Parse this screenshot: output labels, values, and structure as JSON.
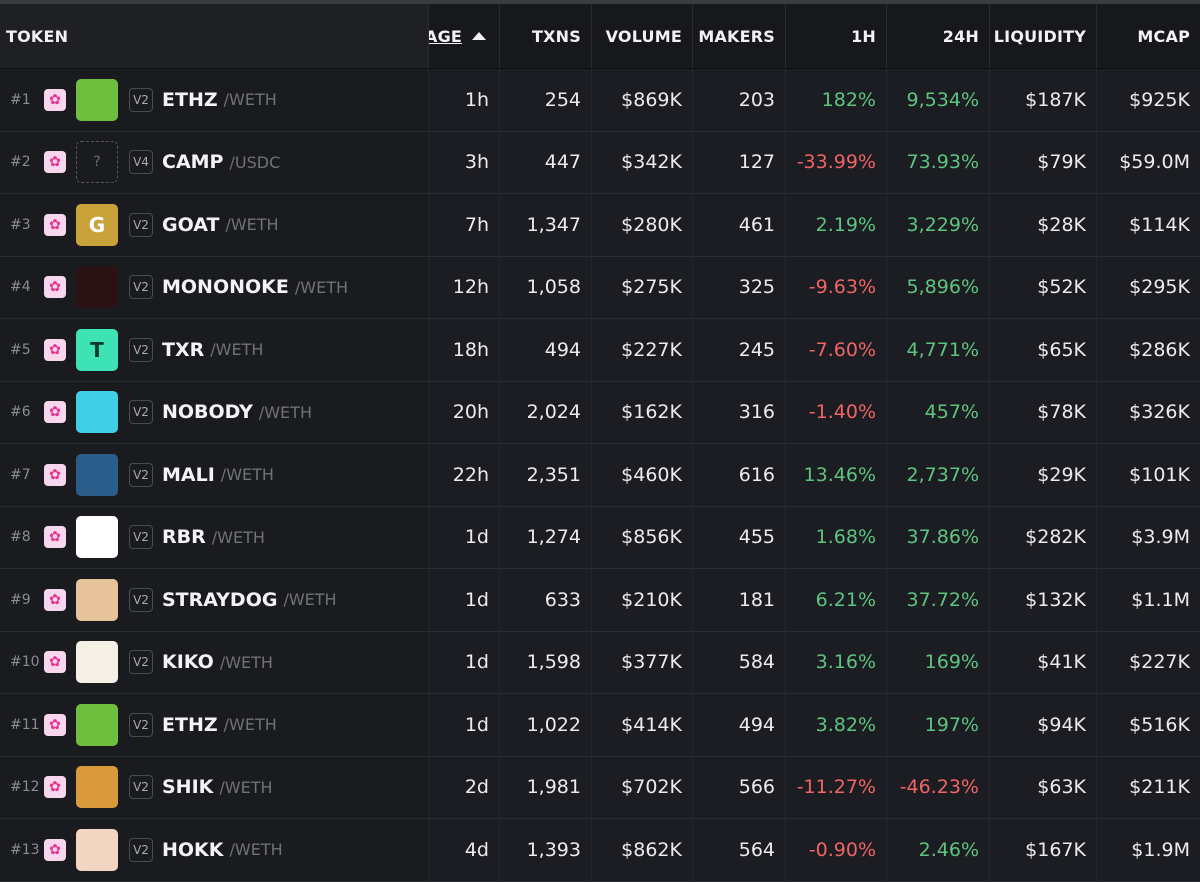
{
  "columns": {
    "token": "TOKEN",
    "age": "AGE",
    "txns": "TXNS",
    "volume": "VOLUME",
    "makers": "MAKERS",
    "h1": "1H",
    "h24": "24H",
    "liquidity": "LIQUIDITY",
    "mcap": "MCAP"
  },
  "colors": {
    "positive": "#5cc57f",
    "negative": "#f06464",
    "background": "#1c1d22"
  },
  "rows": [
    {
      "rank": "#1",
      "dex_icon": "unicorn-icon",
      "logo_icon": "frog-logo-icon",
      "logo_bg": "#6fbf3f",
      "logo_text": "",
      "version": "V2",
      "symbol": "ETHZ",
      "quote": "/WETH",
      "age": "1h",
      "txns": "254",
      "volume": "$869K",
      "makers": "203",
      "h1": "182%",
      "h1_dir": "pos",
      "h24": "9,534%",
      "h24_dir": "pos",
      "liquidity": "$187K",
      "mcap": "$925K"
    },
    {
      "rank": "#2",
      "dex_icon": "unicorn-icon",
      "logo_icon": "unknown-logo-icon",
      "logo_bg": "transparent",
      "logo_text": "?",
      "version": "V4",
      "symbol": "CAMP",
      "quote": "/USDC",
      "age": "3h",
      "txns": "447",
      "volume": "$342K",
      "makers": "127",
      "h1": "-33.99%",
      "h1_dir": "neg",
      "h24": "73.93%",
      "h24_dir": "pos",
      "liquidity": "$79K",
      "mcap": "$59.0M"
    },
    {
      "rank": "#3",
      "dex_icon": "unicorn-icon",
      "logo_icon": "goat-logo-icon",
      "logo_bg": "#c9a23a",
      "logo_text": "G",
      "version": "V2",
      "symbol": "GOAT",
      "quote": "/WETH",
      "age": "7h",
      "txns": "1,347",
      "volume": "$280K",
      "makers": "461",
      "h1": "2.19%",
      "h1_dir": "pos",
      "h24": "3,229%",
      "h24_dir": "pos",
      "liquidity": "$28K",
      "mcap": "$114K"
    },
    {
      "rank": "#4",
      "dex_icon": "unicorn-icon",
      "logo_icon": "wolf-logo-icon",
      "logo_bg": "#2a1214",
      "logo_text": "",
      "version": "V2",
      "symbol": "MONONOKE",
      "quote": "/WETH",
      "age": "12h",
      "txns": "1,058",
      "volume": "$275K",
      "makers": "325",
      "h1": "-9.63%",
      "h1_dir": "neg",
      "h24": "5,896%",
      "h24_dir": "pos",
      "liquidity": "$52K",
      "mcap": "$295K"
    },
    {
      "rank": "#5",
      "dex_icon": "unicorn-icon",
      "logo_icon": "txr-logo-icon",
      "logo_bg": "#3ee3b5",
      "logo_text": "T",
      "version": "V2",
      "symbol": "TXR",
      "quote": "/WETH",
      "age": "18h",
      "txns": "494",
      "volume": "$227K",
      "makers": "245",
      "h1": "-7.60%",
      "h1_dir": "neg",
      "h24": "4,771%",
      "h24_dir": "pos",
      "liquidity": "$65K",
      "mcap": "$286K"
    },
    {
      "rank": "#6",
      "dex_icon": "unicorn-icon",
      "logo_icon": "ghost-logo-icon",
      "logo_bg": "#3fd0e6",
      "logo_text": "",
      "version": "V2",
      "symbol": "NOBODY",
      "quote": "/WETH",
      "age": "20h",
      "txns": "2,024",
      "volume": "$162K",
      "makers": "316",
      "h1": "-1.40%",
      "h1_dir": "neg",
      "h24": "457%",
      "h24_dir": "pos",
      "liquidity": "$78K",
      "mcap": "$326K"
    },
    {
      "rank": "#7",
      "dex_icon": "unicorn-icon",
      "logo_icon": "mali-logo-icon",
      "logo_bg": "#2a5d8a",
      "logo_text": "",
      "version": "V2",
      "symbol": "MALI",
      "quote": "/WETH",
      "age": "22h",
      "txns": "2,351",
      "volume": "$460K",
      "makers": "616",
      "h1": "13.46%",
      "h1_dir": "pos",
      "h24": "2,737%",
      "h24_dir": "pos",
      "liquidity": "$29K",
      "mcap": "$101K"
    },
    {
      "rank": "#8",
      "dex_icon": "unicorn-icon",
      "logo_icon": "robot-logo-icon",
      "logo_bg": "#ffffff",
      "logo_text": "",
      "version": "V2",
      "symbol": "RBR",
      "quote": "/WETH",
      "age": "1d",
      "txns": "1,274",
      "volume": "$856K",
      "makers": "455",
      "h1": "1.68%",
      "h1_dir": "pos",
      "h24": "37.86%",
      "h24_dir": "pos",
      "liquidity": "$282K",
      "mcap": "$3.9M"
    },
    {
      "rank": "#9",
      "dex_icon": "unicorn-icon",
      "logo_icon": "dog-logo-icon",
      "logo_bg": "#e6c39a",
      "logo_text": "",
      "version": "V2",
      "symbol": "STRAYDOG",
      "quote": "/WETH",
      "age": "1d",
      "txns": "633",
      "volume": "$210K",
      "makers": "181",
      "h1": "6.21%",
      "h1_dir": "pos",
      "h24": "37.72%",
      "h24_dir": "pos",
      "liquidity": "$132K",
      "mcap": "$1.1M"
    },
    {
      "rank": "#10",
      "dex_icon": "unicorn-icon",
      "logo_icon": "rottweiler-logo-icon",
      "logo_bg": "#f5f0e6",
      "logo_text": "",
      "version": "V2",
      "symbol": "KIKO",
      "quote": "/WETH",
      "age": "1d",
      "txns": "1,598",
      "volume": "$377K",
      "makers": "584",
      "h1": "3.16%",
      "h1_dir": "pos",
      "h24": "169%",
      "h24_dir": "pos",
      "liquidity": "$41K",
      "mcap": "$227K"
    },
    {
      "rank": "#11",
      "dex_icon": "unicorn-icon",
      "logo_icon": "frog-logo-icon",
      "logo_bg": "#6fbf3f",
      "logo_text": "",
      "version": "V2",
      "symbol": "ETHZ",
      "quote": "/WETH",
      "age": "1d",
      "txns": "1,022",
      "volume": "$414K",
      "makers": "494",
      "h1": "3.82%",
      "h1_dir": "pos",
      "h24": "197%",
      "h24_dir": "pos",
      "liquidity": "$94K",
      "mcap": "$516K"
    },
    {
      "rank": "#12",
      "dex_icon": "unicorn-icon",
      "logo_icon": "shiba-logo-icon",
      "logo_bg": "#d99a3c",
      "logo_text": "",
      "version": "V2",
      "symbol": "SHIK",
      "quote": "/WETH",
      "age": "2d",
      "txns": "1,981",
      "volume": "$702K",
      "makers": "566",
      "h1": "-11.27%",
      "h1_dir": "neg",
      "h24": "-46.23%",
      "h24_dir": "neg",
      "liquidity": "$63K",
      "mcap": "$211K"
    },
    {
      "rank": "#13",
      "dex_icon": "unicorn-icon",
      "logo_icon": "hokk-logo-icon",
      "logo_bg": "#f2d6c2",
      "logo_text": "",
      "version": "V2",
      "symbol": "HOKK",
      "quote": "/WETH",
      "age": "4d",
      "txns": "1,393",
      "volume": "$862K",
      "makers": "564",
      "h1": "-0.90%",
      "h1_dir": "neg",
      "h24": "2.46%",
      "h24_dir": "pos",
      "liquidity": "$167K",
      "mcap": "$1.9M"
    }
  ]
}
